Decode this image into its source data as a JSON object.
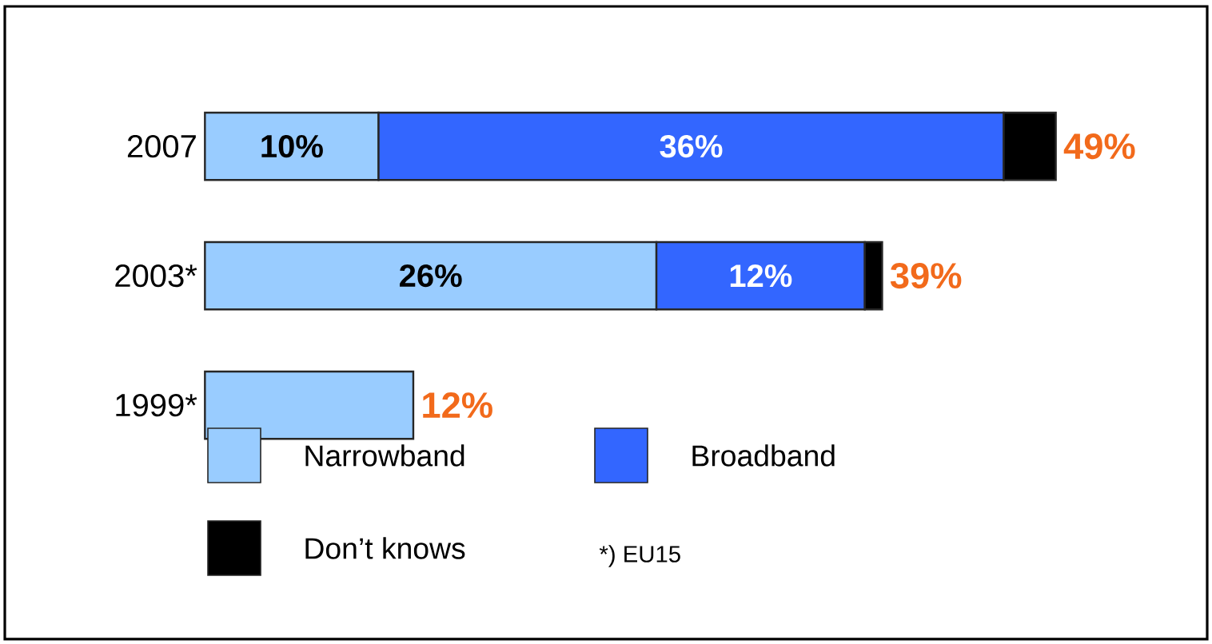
{
  "chart_data": {
    "type": "bar",
    "orientation": "horizontal",
    "stacked": true,
    "categories": [
      "2007",
      "2003*",
      "1999*"
    ],
    "series": [
      {
        "name": "Narrowband",
        "color": "#99ccff",
        "values": [
          10,
          26,
          12
        ],
        "value_labels": [
          "10%",
          "26%",
          null
        ]
      },
      {
        "name": "Broadband",
        "color": "#3366ff",
        "values": [
          36,
          12,
          null
        ],
        "value_labels": [
          "36%",
          "12%",
          null
        ]
      },
      {
        "name": "Don’t knows",
        "color": "#000000",
        "values": [
          3,
          1,
          null
        ]
      }
    ],
    "totals": [
      "49%",
      "39%",
      "12%"
    ],
    "legend": "bottom",
    "annotations": [
      "*) EU15"
    ]
  }
}
